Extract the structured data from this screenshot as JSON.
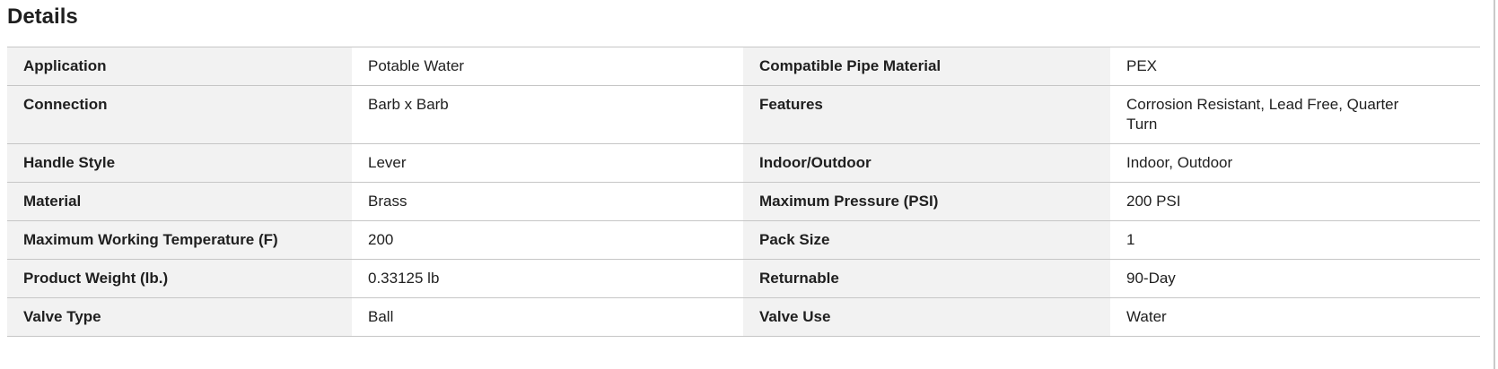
{
  "section": {
    "title": "Details"
  },
  "table": {
    "rows": [
      {
        "left": {
          "label": "Application",
          "value": "Potable Water"
        },
        "right": {
          "label": "Compatible Pipe Material",
          "value": "PEX"
        }
      },
      {
        "left": {
          "label": "Connection",
          "value": "Barb x Barb"
        },
        "right": {
          "label": "Features",
          "value": "Corrosion Resistant, Lead Free, Quarter Turn"
        }
      },
      {
        "left": {
          "label": "Handle Style",
          "value": "Lever"
        },
        "right": {
          "label": "Indoor/Outdoor",
          "value": "Indoor, Outdoor"
        }
      },
      {
        "left": {
          "label": "Material",
          "value": "Brass"
        },
        "right": {
          "label": "Maximum Pressure (PSI)",
          "value": "200 PSI"
        }
      },
      {
        "left": {
          "label": "Maximum Working Temperature (F)",
          "value": "200"
        },
        "right": {
          "label": "Pack Size",
          "value": "1"
        }
      },
      {
        "left": {
          "label": "Product Weight (lb.)",
          "value": "0.33125 lb"
        },
        "right": {
          "label": "Returnable",
          "value": "90-Day"
        }
      },
      {
        "left": {
          "label": "Valve Type",
          "value": "Ball"
        },
        "right": {
          "label": "Valve Use",
          "value": "Water"
        }
      }
    ]
  },
  "colors": {
    "label_cell_bg": "#f2f2f2",
    "row_border": "#c6c6c6",
    "text": "#1f1f1f",
    "page_edge_line": "#c9c9c9"
  }
}
